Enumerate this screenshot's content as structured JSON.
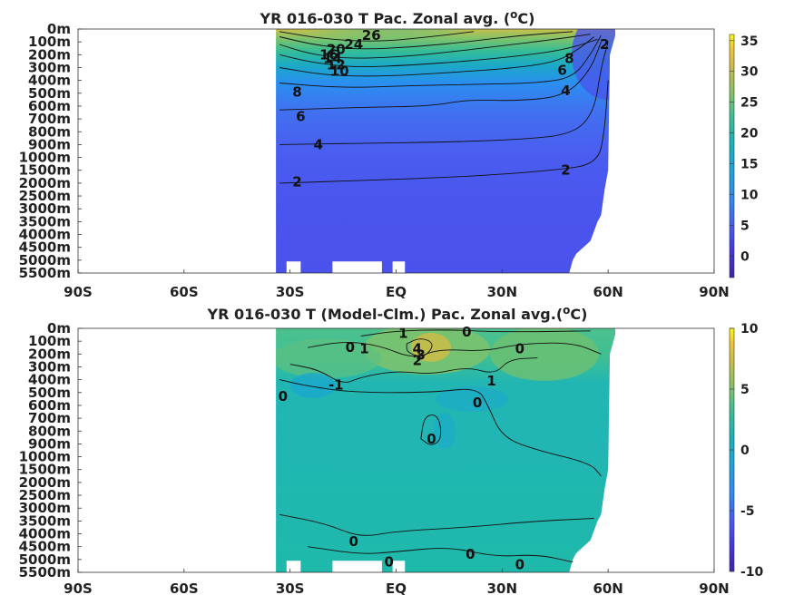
{
  "chart_data": [
    {
      "type": "heatmap",
      "title_main": "YR 016-030 T Pac. Zonal avg. (",
      "title_sup": "o",
      "title_end": "C)",
      "xticks": [
        "90S",
        "60S",
        "30S",
        "EQ",
        "30N",
        "60N",
        "90N"
      ],
      "xtick_values": [
        -90,
        -60,
        -30,
        0,
        30,
        60,
        90
      ],
      "xlim": [
        -90,
        90
      ],
      "yticks": [
        "0m",
        "100m",
        "200m",
        "300m",
        "400m",
        "500m",
        "600m",
        "700m",
        "800m",
        "900m",
        "1000m",
        "1500m",
        "2000m",
        "2500m",
        "3000m",
        "3500m",
        "4000m",
        "4500m",
        "5000m",
        "5500m"
      ],
      "colorbar_ticks": [
        "35",
        "30",
        "25",
        "20",
        "15",
        "10",
        "5",
        "0"
      ],
      "colorbar_values": [
        35,
        30,
        25,
        20,
        15,
        10,
        5,
        0
      ],
      "clim": [
        -3.5,
        36
      ],
      "contour_labels": [
        {
          "text": "26",
          "lat": -7,
          "depth_index": 0.5
        },
        {
          "text": "24",
          "lat": -12,
          "depth_index": 1.2
        },
        {
          "text": "20",
          "lat": -17,
          "depth_index": 1.6
        },
        {
          "text": "16",
          "lat": -19,
          "depth_index": 2.0
        },
        {
          "text": "14",
          "lat": -18,
          "depth_index": 2.3
        },
        {
          "text": "12",
          "lat": -17,
          "depth_index": 2.8
        },
        {
          "text": "10",
          "lat": -16,
          "depth_index": 3.3
        },
        {
          "text": "8",
          "lat": -28,
          "depth_index": 4.9
        },
        {
          "text": "6",
          "lat": -27,
          "depth_index": 6.8
        },
        {
          "text": "4",
          "lat": -22,
          "depth_index": 9.0
        },
        {
          "text": "2",
          "lat": -28,
          "depth_index": 11.9
        },
        {
          "text": "2",
          "lat": 48,
          "depth_index": 11.0
        },
        {
          "text": "4",
          "lat": 48,
          "depth_index": 4.8
        },
        {
          "text": "6",
          "lat": 47,
          "depth_index": 3.2
        },
        {
          "text": "8",
          "lat": 49,
          "depth_index": 2.3
        },
        {
          "text": "2",
          "lat": 59,
          "depth_index": 1.2
        }
      ]
    },
    {
      "type": "heatmap",
      "title_main": "YR 016-030 T (Model-Clm.) Pac. Zonal avg.(",
      "title_sup": "o",
      "title_end": "C)",
      "xticks": [
        "90S",
        "60S",
        "30S",
        "EQ",
        "30N",
        "60N",
        "90N"
      ],
      "xtick_values": [
        -90,
        -60,
        -30,
        0,
        30,
        60,
        90
      ],
      "xlim": [
        -90,
        90
      ],
      "yticks": [
        "0m",
        "100m",
        "200m",
        "300m",
        "400m",
        "500m",
        "600m",
        "700m",
        "800m",
        "900m",
        "1000m",
        "1500m",
        "2000m",
        "2500m",
        "3000m",
        "3500m",
        "4000m",
        "4500m",
        "5000m",
        "5500m"
      ],
      "colorbar_ticks": [
        "10",
        "5",
        "0",
        "-5",
        "-10"
      ],
      "colorbar_values": [
        10,
        5,
        0,
        -5,
        -10
      ],
      "clim": [
        -10,
        10
      ],
      "contour_labels": [
        {
          "text": "1",
          "lat": 2,
          "depth_index": 0.4
        },
        {
          "text": "0",
          "lat": 20,
          "depth_index": 0.3
        },
        {
          "text": "0",
          "lat": -13,
          "depth_index": 1.5
        },
        {
          "text": "1",
          "lat": -9,
          "depth_index": 1.6
        },
        {
          "text": "4",
          "lat": 6,
          "depth_index": 1.6
        },
        {
          "text": "3",
          "lat": 7,
          "depth_index": 2.1
        },
        {
          "text": "2",
          "lat": 6,
          "depth_index": 2.5
        },
        {
          "text": "0",
          "lat": 35,
          "depth_index": 1.6
        },
        {
          "text": "-1",
          "lat": -17,
          "depth_index": 4.4
        },
        {
          "text": "1",
          "lat": 27,
          "depth_index": 4.1
        },
        {
          "text": "0",
          "lat": -32,
          "depth_index": 5.3
        },
        {
          "text": "0",
          "lat": 23,
          "depth_index": 5.8
        },
        {
          "text": "0",
          "lat": 10,
          "depth_index": 8.6
        },
        {
          "text": "0",
          "lat": -12,
          "depth_index": 16.6
        },
        {
          "text": "0",
          "lat": -2,
          "depth_index": 18.2
        },
        {
          "text": "0",
          "lat": 21,
          "depth_index": 17.6
        },
        {
          "text": "0",
          "lat": 35,
          "depth_index": 18.4
        }
      ]
    }
  ]
}
